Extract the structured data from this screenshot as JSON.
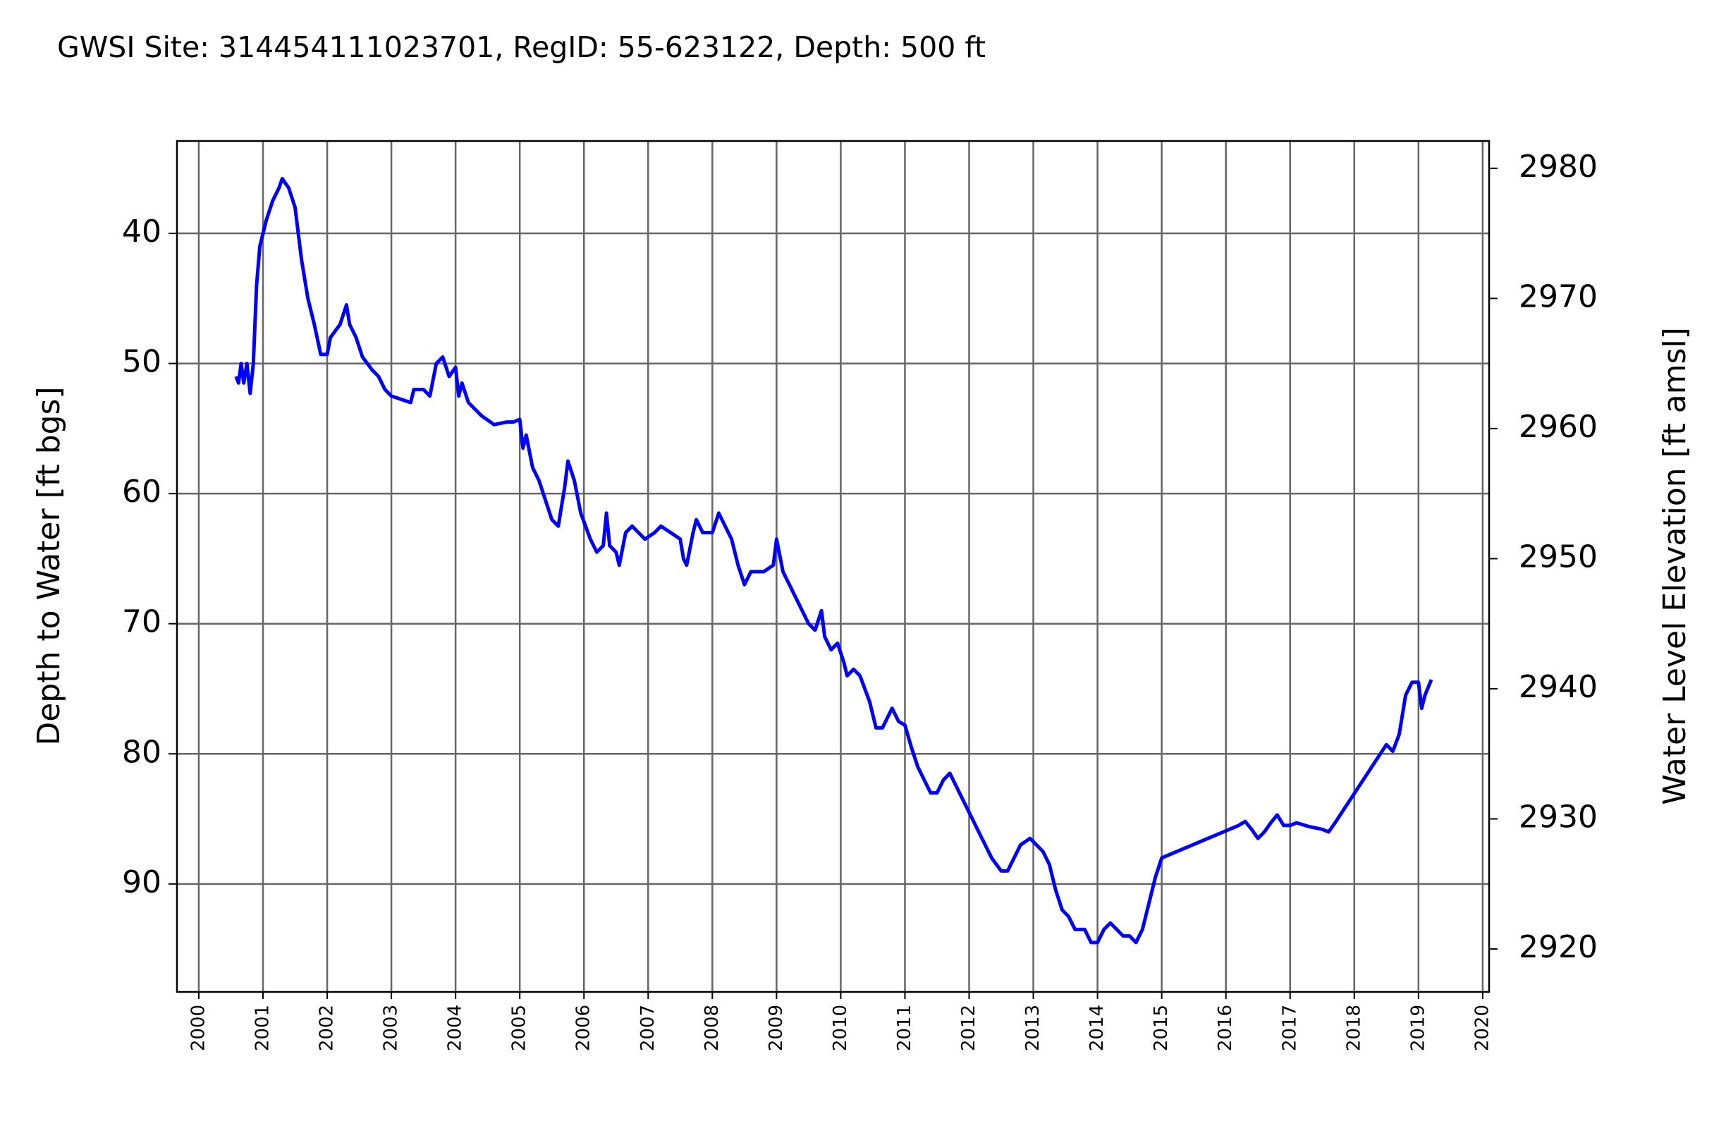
{
  "chart_data": {
    "type": "line",
    "title": "GWSI Site: 314454111023701, RegID: 55-623122, Depth: 500 ft",
    "ylabel": "Depth to Water [ft bgs]",
    "y2label": "Water Level Elevation [ft amsl]",
    "y2color": "#008000",
    "grid": true,
    "y_inverted": true,
    "xlim": [
      1999.66,
      2020.1
    ],
    "xticks": [
      2000,
      2001,
      2002,
      2003,
      2004,
      2005,
      2006,
      2007,
      2008,
      2009,
      2010,
      2011,
      2012,
      2013,
      2014,
      2015,
      2016,
      2017,
      2018,
      2019,
      2020
    ],
    "ylim": [
      32.9,
      98.3
    ],
    "yticks": [
      40,
      50,
      60,
      70,
      80,
      90
    ],
    "y2lim": [
      2916.7,
      2982.1
    ],
    "y2ticks": [
      2920,
      2930,
      2940,
      2950,
      2960,
      2970,
      2980
    ],
    "x": [
      2000.58,
      2000.62,
      2000.66,
      2000.7,
      2000.75,
      2000.8,
      2000.85,
      2000.9,
      2000.95,
      2001.05,
      2001.15,
      2001.25,
      2001.3,
      2001.4,
      2001.5,
      2001.6,
      2001.7,
      2001.8,
      2001.9,
      2002.0,
      2002.05,
      2002.2,
      2002.3,
      2002.35,
      2002.45,
      2002.55,
      2002.7,
      2002.8,
      2002.9,
      2003.0,
      2003.3,
      2003.35,
      2003.5,
      2003.6,
      2003.7,
      2003.8,
      2003.9,
      2004.0,
      2004.05,
      2004.1,
      2004.2,
      2004.4,
      2004.6,
      2004.8,
      2004.9,
      2005.0,
      2005.05,
      2005.1,
      2005.2,
      2005.3,
      2005.4,
      2005.5,
      2005.6,
      2005.7,
      2005.75,
      2005.85,
      2005.95,
      2006.1,
      2006.2,
      2006.3,
      2006.35,
      2006.4,
      2006.5,
      2006.55,
      2006.65,
      2006.75,
      2006.85,
      2006.95,
      2007.1,
      2007.2,
      2007.35,
      2007.5,
      2007.55,
      2007.6,
      2007.7,
      2007.75,
      2007.85,
      2008.0,
      2008.1,
      2008.2,
      2008.3,
      2008.4,
      2008.5,
      2008.6,
      2008.8,
      2008.95,
      2009.0,
      2009.1,
      2009.2,
      2009.35,
      2009.5,
      2009.6,
      2009.7,
      2009.75,
      2009.85,
      2009.95,
      2010.05,
      2010.1,
      2010.2,
      2010.3,
      2010.45,
      2010.55,
      2010.65,
      2010.75,
      2010.8,
      2010.9,
      2011.0,
      2011.1,
      2011.2,
      2011.3,
      2011.4,
      2011.5,
      2011.6,
      2011.7,
      2011.8,
      2011.9,
      2012.0,
      2012.1,
      2012.2,
      2012.35,
      2012.5,
      2012.6,
      2012.7,
      2012.8,
      2012.95,
      2013.05,
      2013.15,
      2013.25,
      2013.35,
      2013.45,
      2013.55,
      2013.65,
      2013.8,
      2013.9,
      2014.0,
      2014.1,
      2014.2,
      2014.3,
      2014.4,
      2014.5,
      2014.6,
      2014.7,
      2014.8,
      2014.9,
      2015.0,
      2016.2,
      2016.3,
      2016.4,
      2016.5,
      2016.6,
      2016.7,
      2016.8,
      2016.9,
      2017.0,
      2017.1,
      2017.3,
      2017.5,
      2017.6,
      2017.7,
      2018.5,
      2018.6,
      2018.7,
      2018.8,
      2018.9,
      2019.0,
      2019.05,
      2019.1,
      2019.2
    ],
    "series": [
      {
        "color": "#0000ff",
        "values": [
          51,
          51.5,
          50,
          51.5,
          50,
          52.3,
          50,
          44,
          41,
          39,
          37.5,
          36.5,
          35.8,
          36.5,
          38,
          42,
          45,
          47,
          49.3,
          49.3,
          48,
          47,
          45.5,
          47,
          48,
          49.5,
          50.5,
          51,
          52,
          52.5,
          53,
          52,
          52,
          52.5,
          50,
          49.5,
          51,
          50.3,
          52.5,
          51.5,
          53,
          54,
          54.7,
          54.5,
          54.5,
          54.3,
          56.5,
          55.5,
          58,
          59,
          60.5,
          62,
          62.5,
          59.5,
          57.5,
          59,
          61.5,
          63.5,
          64.5,
          64,
          61.5,
          64,
          64.5,
          65.5,
          63,
          62.5,
          63,
          63.5,
          63,
          62.5,
          63,
          63.5,
          65,
          65.5,
          63,
          62,
          63,
          63,
          61.5,
          62.5,
          63.5,
          65.5,
          67,
          66,
          66,
          65.5,
          63.5,
          66,
          67,
          68.5,
          70,
          70.5,
          69,
          71,
          72,
          71.5,
          73,
          74,
          73.5,
          74,
          76,
          78,
          78,
          77,
          76.5,
          77.5,
          77.8,
          79.5,
          81,
          82,
          83,
          83,
          82,
          81.5,
          82.5,
          83.5,
          84.5,
          85.5,
          86.5,
          88,
          89,
          89,
          88,
          87,
          86.5,
          87,
          87.5,
          88.5,
          90.5,
          92,
          92.5,
          93.5,
          93.5,
          94.5,
          94.5,
          93.5,
          93,
          93.5,
          94,
          94,
          94.5,
          93.5,
          91.5,
          89.5,
          88,
          85.5,
          85.2,
          85.8,
          86.5,
          86,
          85.3,
          84.7,
          85.5,
          85.5,
          85.3,
          85.6,
          85.8,
          86,
          85.3,
          79.3,
          79.8,
          78.5,
          75.5,
          74.5,
          74.5,
          76.5,
          75.5,
          74.3
        ]
      }
    ]
  }
}
